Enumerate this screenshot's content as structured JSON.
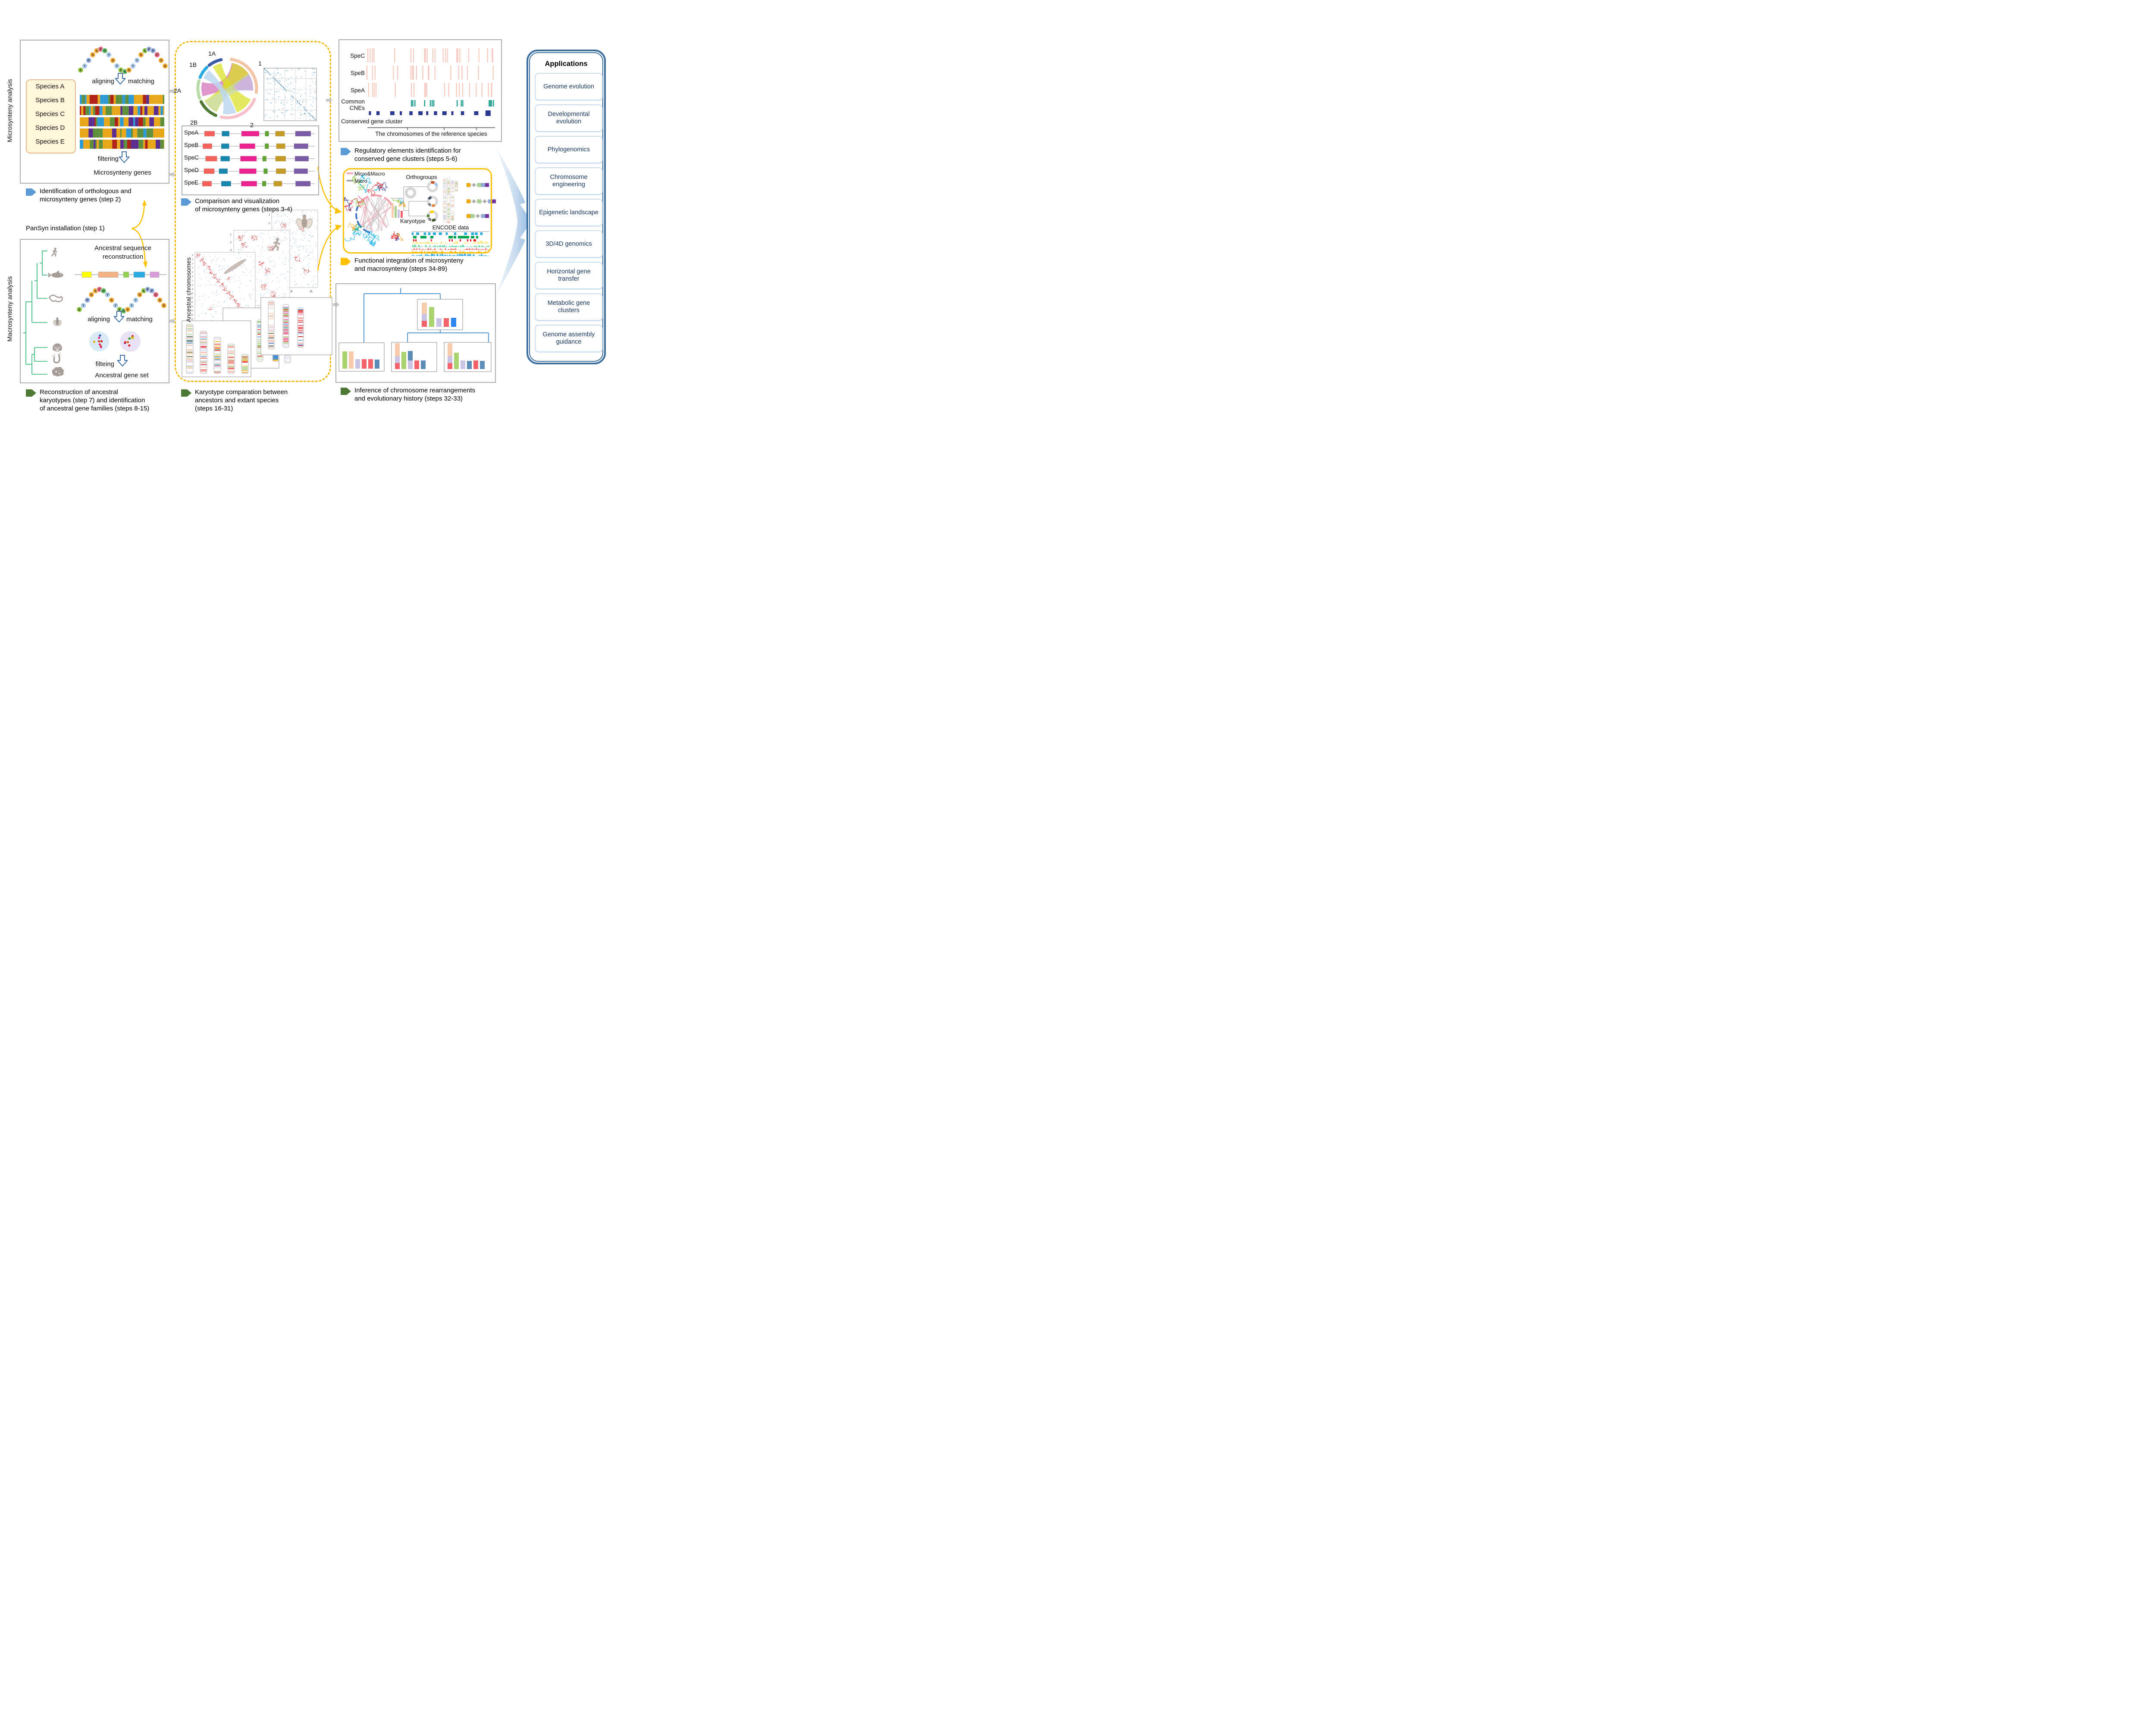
{
  "colors": {
    "caption_blue": "#5B9BD5",
    "caption_gold": "#FFC000",
    "caption_green": "#4E7A35",
    "dashed_box": "#F2B705",
    "gray_arrow": "#C9C9C9",
    "app_border": "#3C6E9F",
    "app_text": "#17375E"
  },
  "side_labels": {
    "top": "Microsynteny analysis",
    "bottom": "Macrosynteny analysis"
  },
  "micro_panel": {
    "amino_letters": [
      "E",
      "Y",
      "P",
      "S",
      "S",
      "C",
      "N",
      "Y",
      "S",
      "Y",
      "E",
      "N",
      "S",
      "Y",
      "Y",
      "S",
      "E",
      "P",
      "P",
      "C",
      "S",
      "S"
    ],
    "aligning": "aligning",
    "matching": "matching",
    "species": [
      "Species A",
      "Species B",
      "Species C",
      "Species D",
      "Species E"
    ],
    "filtering": "filtering",
    "result": "Microsynteny genes"
  },
  "captions": {
    "step2": {
      "lines": [
        "Identification of orthologous and",
        "microsynteny genes (step 2)"
      ]
    },
    "step1": "PanSyn installation (step 1)",
    "steps34": {
      "lines": [
        "Comparison and visualization",
        "of microsynteny genes (steps 3-4)"
      ]
    },
    "steps56": {
      "lines": [
        "Regulatory elements identification for",
        "conserved gene clusters (steps 5-6)"
      ]
    },
    "steps3489": {
      "lines": [
        "Functional integration of microsynteny",
        "and macrosynteny (steps 34-89)"
      ]
    },
    "steps815": {
      "lines": [
        "Reconstruction of ancestral",
        "karyotypes (step 7) and identification",
        "of ancestral gene families (steps 8-15)"
      ]
    },
    "steps1631": {
      "lines": [
        "Karyotype comparation between",
        "ancestors and extant species",
        "(steps 16-31)"
      ]
    },
    "steps3233": {
      "lines": [
        "Inference of chromosome rearrangements",
        "and evolutionary history (steps 32-33)"
      ]
    }
  },
  "micro_viz": {
    "circos_labels": [
      "1A",
      "1B",
      "2A",
      "2B",
      "1",
      "2"
    ],
    "species": [
      "SpeA",
      "SpeB",
      "SpeC",
      "SpeD",
      "SpeE"
    ]
  },
  "reg_panel": {
    "rows": [
      "SpeC",
      "SpeB",
      "SpeA"
    ],
    "cne_label": [
      "Common",
      "CNEs"
    ],
    "cluster_label": "Conserved gene cluster",
    "axis_label": "The chromosomes of the reference species"
  },
  "func_panel": {
    "legend": [
      {
        "label": "Micro&Macro"
      },
      {
        "label": "Micro"
      }
    ],
    "orthogroups": "Orthogroups",
    "karyotype": "Karyotype",
    "encode": "ENCODE data"
  },
  "macro_panel": {
    "title_lines": [
      "Ancestral sequence",
      "reconstruction"
    ],
    "aligning": "aligning",
    "matching": "matching",
    "filtering": "filteing",
    "result": "Ancestral gene set",
    "animals": [
      "human",
      "fish",
      "nematode",
      "fly",
      "scallop",
      "tunicate",
      "sponge"
    ]
  },
  "macro_viz": {
    "rot_label": "Ancestral chromosomes",
    "plot_front": {
      "x_ticks": "12 10 16 18 11 2 13 5 19 14 15 8 4 6 1 7 9 3 17",
      "y_ticks": "1 2 3 4 5 6 7 8 9 10 11 12 13 14 15 16 17"
    },
    "plot_mid": {
      "x_ticks": "3 X 11 1 9 10 16 20 18 14 19 4 6 21 8",
      "y_ticks": "1 2 3 4"
    },
    "plot_back": {
      "x_ticks": "X 2L",
      "y_ticks": "1 2 3 4"
    }
  },
  "applications": {
    "title": "Applications",
    "items": [
      "Genome evolution",
      "Developmental evolution",
      "Phylogenomics",
      "Chromosome engineering",
      "Epigenetic landscape",
      "3D/4D genomics",
      "Horizontal gene transfer",
      "Metabolic gene clusters",
      "Genome assembly guidance"
    ]
  }
}
